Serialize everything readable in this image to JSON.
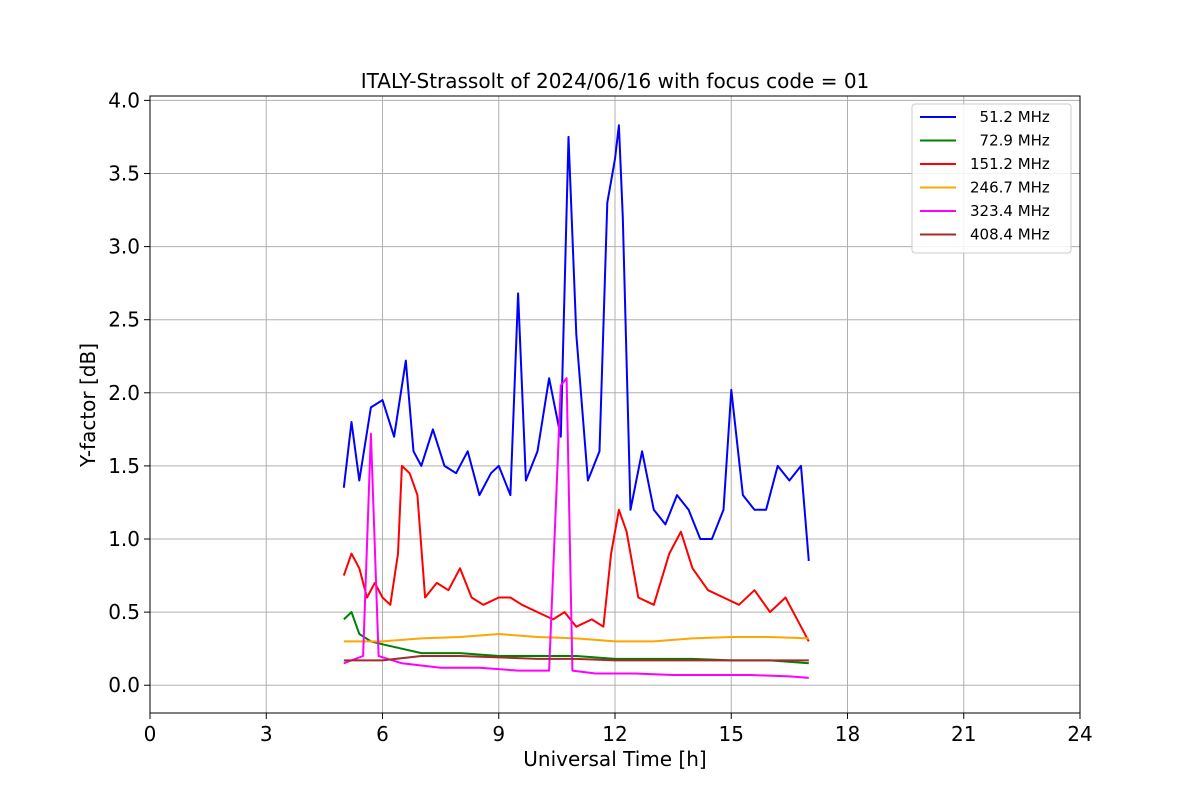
{
  "chart_data": {
    "type": "line",
    "title": "ITALY-Strassolt of 2024/06/16 with focus code = 01",
    "xlabel": "Universal Time [h]",
    "ylabel": "Y-factor [dB]",
    "xlim": [
      0,
      24
    ],
    "ylim": [
      -0.19,
      4.03
    ],
    "xticks": [
      0,
      3,
      6,
      9,
      12,
      15,
      18,
      21,
      24
    ],
    "yticks": [
      0.0,
      0.5,
      1.0,
      1.5,
      2.0,
      2.5,
      3.0,
      3.5,
      4.0
    ],
    "xtick_labels": [
      "0",
      "3",
      "6",
      "9",
      "12",
      "15",
      "18",
      "21",
      "24"
    ],
    "ytick_labels": [
      "0.0",
      "0.5",
      "1.0",
      "1.5",
      "2.0",
      "2.5",
      "3.0",
      "3.5",
      "4.0"
    ],
    "grid": true,
    "legend_position": "top-right",
    "series": [
      {
        "name": "  51.2 MHz",
        "color": "#0000ff",
        "x": [
          5.0,
          5.2,
          5.4,
          5.7,
          6.0,
          6.3,
          6.6,
          6.8,
          7.0,
          7.3,
          7.6,
          7.9,
          8.2,
          8.5,
          8.8,
          9.0,
          9.3,
          9.5,
          9.7,
          10.0,
          10.3,
          10.6,
          10.8,
          11.0,
          11.3,
          11.6,
          11.8,
          12.0,
          12.1,
          12.2,
          12.4,
          12.7,
          13.0,
          13.3,
          13.6,
          13.9,
          14.2,
          14.5,
          14.8,
          15.0,
          15.3,
          15.6,
          15.9,
          16.2,
          16.5,
          16.8,
          17.0
        ],
        "y": [
          1.35,
          1.8,
          1.4,
          1.9,
          1.95,
          1.7,
          2.22,
          1.6,
          1.5,
          1.75,
          1.5,
          1.45,
          1.6,
          1.3,
          1.45,
          1.5,
          1.3,
          2.68,
          1.4,
          1.6,
          2.1,
          1.7,
          3.75,
          2.4,
          1.4,
          1.6,
          3.3,
          3.6,
          3.83,
          3.2,
          1.2,
          1.6,
          1.2,
          1.1,
          1.3,
          1.2,
          1.0,
          1.0,
          1.2,
          2.02,
          1.3,
          1.2,
          1.2,
          1.5,
          1.4,
          1.5,
          0.85
        ]
      },
      {
        "name": "  72.9 MHz",
        "color": "#008000",
        "x": [
          5.0,
          5.2,
          5.4,
          5.7,
          6.0,
          6.5,
          7.0,
          8.0,
          9.0,
          10.0,
          11.0,
          12.0,
          13.0,
          14.0,
          15.0,
          16.0,
          17.0
        ],
        "y": [
          0.45,
          0.5,
          0.35,
          0.3,
          0.28,
          0.25,
          0.22,
          0.22,
          0.2,
          0.2,
          0.2,
          0.18,
          0.18,
          0.18,
          0.17,
          0.17,
          0.15
        ]
      },
      {
        "name": "151.2 MHz",
        "color": "#ff0000",
        "x": [
          5.0,
          5.2,
          5.4,
          5.6,
          5.8,
          6.0,
          6.2,
          6.4,
          6.5,
          6.7,
          6.9,
          7.1,
          7.4,
          7.7,
          8.0,
          8.3,
          8.6,
          9.0,
          9.3,
          9.6,
          10.0,
          10.4,
          10.7,
          11.0,
          11.4,
          11.7,
          11.9,
          12.1,
          12.3,
          12.6,
          13.0,
          13.4,
          13.7,
          14.0,
          14.4,
          14.8,
          15.2,
          15.6,
          16.0,
          16.4,
          16.8,
          17.0
        ],
        "y": [
          0.75,
          0.9,
          0.8,
          0.6,
          0.7,
          0.6,
          0.55,
          0.9,
          1.5,
          1.45,
          1.3,
          0.6,
          0.7,
          0.65,
          0.8,
          0.6,
          0.55,
          0.6,
          0.6,
          0.55,
          0.5,
          0.45,
          0.5,
          0.4,
          0.45,
          0.4,
          0.9,
          1.2,
          1.05,
          0.6,
          0.55,
          0.9,
          1.05,
          0.8,
          0.65,
          0.6,
          0.55,
          0.65,
          0.5,
          0.6,
          0.4,
          0.3
        ]
      },
      {
        "name": "246.7 MHz",
        "color": "#ffa500",
        "x": [
          5.0,
          6.0,
          7.0,
          8.0,
          9.0,
          10.0,
          11.0,
          12.0,
          13.0,
          14.0,
          15.0,
          16.0,
          17.0
        ],
        "y": [
          0.3,
          0.3,
          0.32,
          0.33,
          0.35,
          0.33,
          0.32,
          0.3,
          0.3,
          0.32,
          0.33,
          0.33,
          0.32
        ]
      },
      {
        "name": "323.4 MHz",
        "color": "#ff00ff",
        "x": [
          5.0,
          5.5,
          5.7,
          5.9,
          6.5,
          7.5,
          8.5,
          9.5,
          10.3,
          10.6,
          10.75,
          10.9,
          11.5,
          12.5,
          13.5,
          14.5,
          15.5,
          16.5,
          17.0
        ],
        "y": [
          0.15,
          0.2,
          1.72,
          0.2,
          0.15,
          0.12,
          0.12,
          0.1,
          0.1,
          2.05,
          2.1,
          0.1,
          0.08,
          0.08,
          0.07,
          0.07,
          0.07,
          0.06,
          0.05
        ]
      },
      {
        "name": "408.4 MHz",
        "color": "#a52a2a",
        "x": [
          5.0,
          6.0,
          7.0,
          8.0,
          9.0,
          10.0,
          11.0,
          12.0,
          13.0,
          14.0,
          15.0,
          16.0,
          17.0
        ],
        "y": [
          0.17,
          0.17,
          0.2,
          0.2,
          0.19,
          0.18,
          0.18,
          0.17,
          0.17,
          0.17,
          0.17,
          0.17,
          0.17
        ]
      }
    ]
  }
}
